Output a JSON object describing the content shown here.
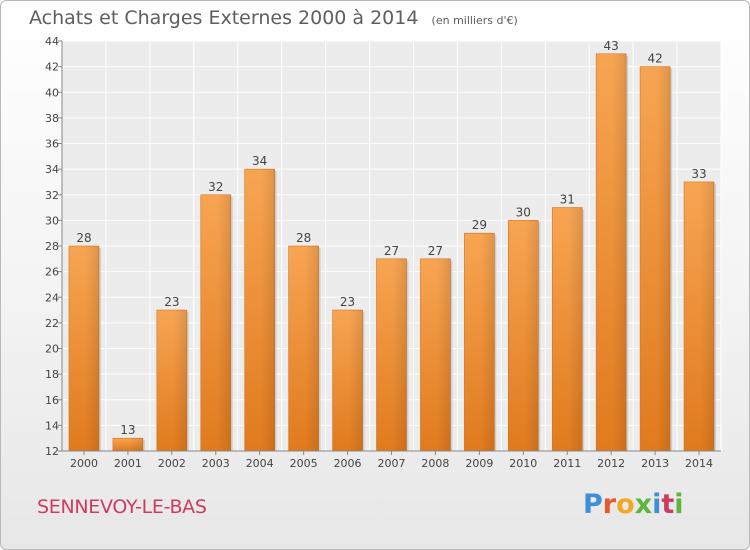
{
  "chart_data": {
    "type": "bar",
    "title": "Achats et Charges Externes 2000 à 2014",
    "subtitle": "(en milliers d'€)",
    "categories": [
      "2000",
      "2001",
      "2002",
      "2003",
      "2004",
      "2005",
      "2006",
      "2007",
      "2008",
      "2009",
      "2010",
      "2011",
      "2012",
      "2013",
      "2014"
    ],
    "values": [
      28,
      13,
      23,
      32,
      34,
      28,
      23,
      27,
      27,
      29,
      30,
      31,
      43,
      42,
      33
    ],
    "xlabel": "",
    "ylabel": "",
    "ylim": [
      12,
      44
    ],
    "yticks": [
      12,
      14,
      16,
      18,
      20,
      22,
      24,
      26,
      28,
      30,
      32,
      34,
      36,
      38,
      40,
      42,
      44
    ],
    "grid": true,
    "bar_color": "#f0913a"
  },
  "footer": {
    "commune": "SENNEVOY-LE-BAS",
    "logo_text": "Proxiti",
    "logo_colors": [
      "#3e8fd6",
      "#e8552f",
      "#f2a825",
      "#5db53e",
      "#3e8fd6",
      "#cf3b5e",
      "#5db53e"
    ]
  }
}
